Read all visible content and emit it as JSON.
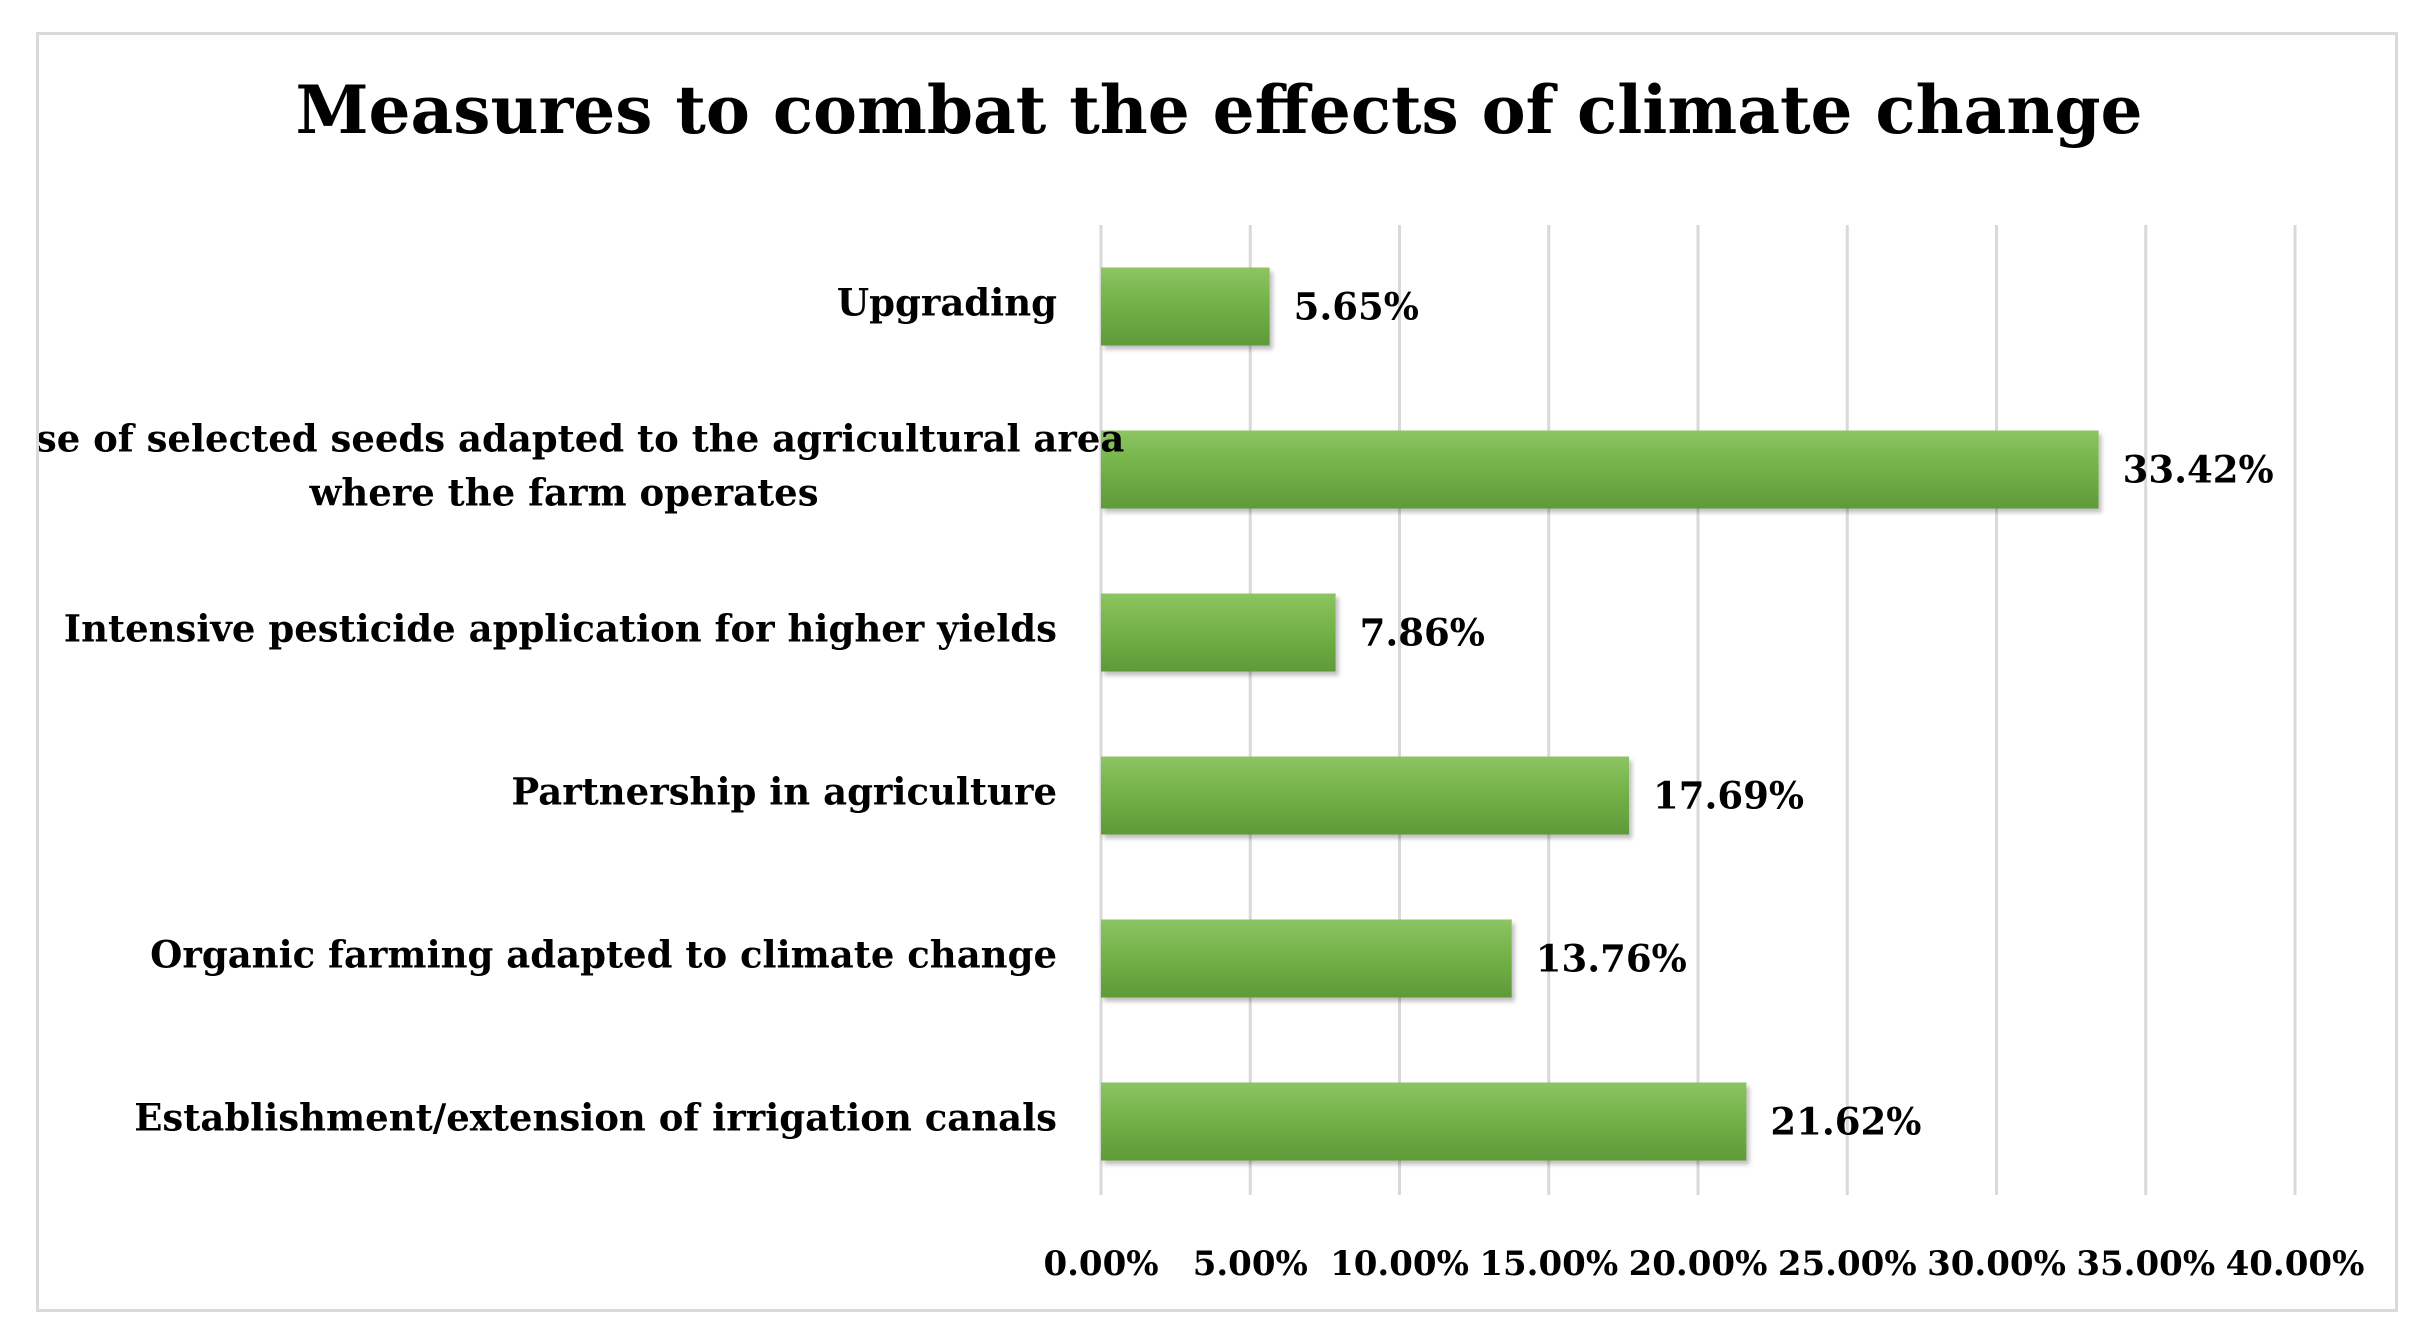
{
  "chart_data": {
    "type": "bar",
    "orientation": "horizontal",
    "title": "Measures to combat the effects of climate change",
    "categories": [
      [
        "Upgrading"
      ],
      [
        "Use of selected seeds adapted to the agricultural area",
        "where the farm operates"
      ],
      [
        "Intensive pesticide application for higher yields"
      ],
      [
        "Partnership in agriculture"
      ],
      [
        "Organic farming adapted to climate change"
      ],
      [
        "Establishment/extension of irrigation canals"
      ]
    ],
    "values": [
      5.65,
      33.42,
      7.86,
      17.69,
      13.76,
      21.62
    ],
    "data_labels": [
      "5.65%",
      "33.42%",
      "7.86%",
      "17.69%",
      "13.76%",
      "21.62%"
    ],
    "xlim": [
      0,
      40
    ],
    "ticks": [
      0,
      5,
      10,
      15,
      20,
      25,
      30,
      35,
      40
    ],
    "tick_labels": [
      "0.00%",
      "5.00%",
      "10.00%",
      "15.00%",
      "20.00%",
      "25.00%",
      "30.00%",
      "35.00%",
      "40.00%"
    ],
    "xlabel": "",
    "ylabel": "",
    "grid": true,
    "legend": "none",
    "colors": {
      "bar_top": "#8cc461",
      "bar_mid": "#71b146",
      "bar_bottom": "#5f9a38",
      "grid": "#d9d9d9",
      "border": "#d9d9d9"
    }
  }
}
